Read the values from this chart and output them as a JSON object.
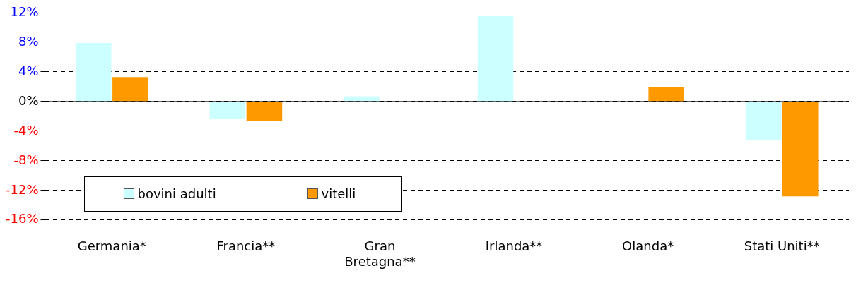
{
  "chart_data": {
    "type": "bar",
    "categories": [
      "Germania*",
      "Francia**",
      "Gran Bretagna**",
      "Irlanda**",
      "Olanda*",
      "Stati Uniti**"
    ],
    "series": [
      {
        "name": "bovini adulti",
        "color": "#ccffff",
        "values": [
          7.9,
          -2.4,
          0.7,
          11.6,
          null,
          -5.2
        ]
      },
      {
        "name": "vitelli",
        "color": "#ff9900",
        "values": [
          3.3,
          -2.6,
          null,
          null,
          2.0,
          -12.8
        ]
      }
    ],
    "ylim": [
      -16,
      12
    ],
    "yticks": [
      {
        "value": -16,
        "label": "-16%"
      },
      {
        "value": -12,
        "label": "-12%"
      },
      {
        "value": -8,
        "label": "-8%"
      },
      {
        "value": -4,
        "label": "-4%"
      },
      {
        "value": 0,
        "label": "0%"
      },
      {
        "value": 4,
        "label": "4%"
      },
      {
        "value": 8,
        "label": "8%"
      },
      {
        "value": 12,
        "label": "12%"
      }
    ],
    "grid": "y",
    "legend": "bottom left"
  }
}
